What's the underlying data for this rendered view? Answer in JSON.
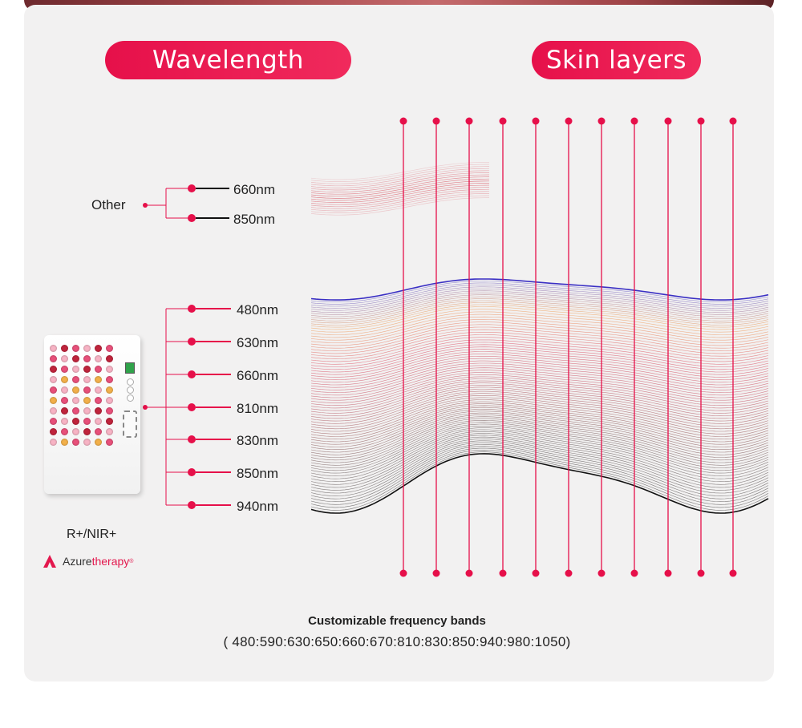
{
  "headers": {
    "wavelength": "Wavelength",
    "skin_layers": "Skin layers"
  },
  "other_group": {
    "label": "Other",
    "items": [
      "660nm",
      "850nm"
    ]
  },
  "main_group": {
    "items": [
      "480nm",
      "630nm",
      "660nm",
      "810nm",
      "830nm",
      "850nm",
      "940nm"
    ]
  },
  "device": {
    "model": "R+/NIR+"
  },
  "brand": {
    "name_part1": "Azure",
    "name_part2": "therapy",
    "mark": "®"
  },
  "footer": {
    "title": "Customizable frequency bands",
    "bands": "( 480:590:630:650:660:670:810:830:850:940:980:1050)"
  },
  "colors": {
    "accent": "#e6104a",
    "wave_blue": "#3a2fc4",
    "wave_orange": "#f08a2e",
    "wave_red": "#d81f3c",
    "wave_dark": "#111111"
  }
}
